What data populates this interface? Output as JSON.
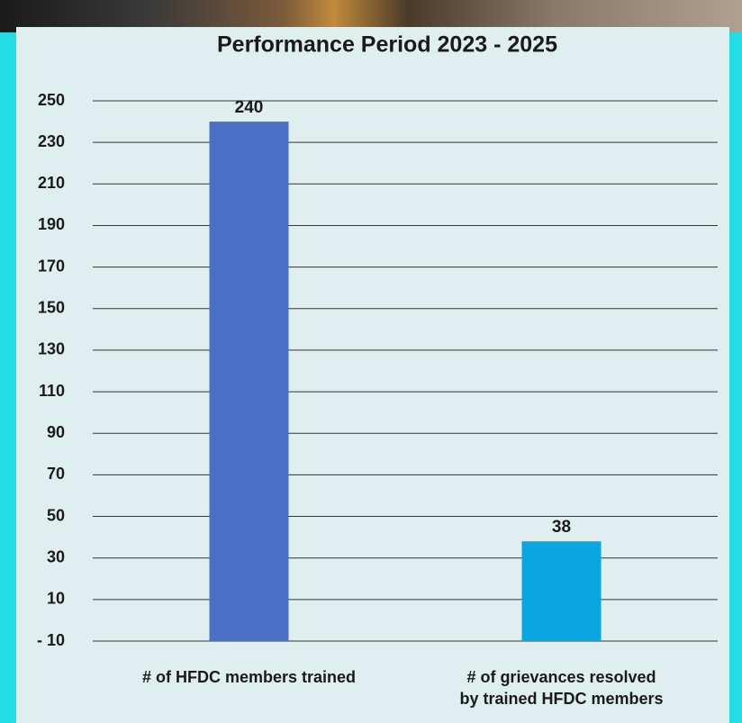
{
  "chart_data": {
    "type": "bar",
    "title": "Performance Period 2023 - 2025",
    "categories": [
      "# of HFDC members trained",
      "# of grievances resolved\nby trained HFDC members"
    ],
    "values": [
      240,
      38
    ],
    "colors": [
      "#4a70c6",
      "#0aa6e2"
    ],
    "ylim": [
      -10,
      250
    ],
    "yticks": [
      {
        "value": -10,
        "label": "- 10"
      },
      10,
      30,
      50,
      70,
      90,
      110,
      130,
      150,
      170,
      190,
      210,
      230,
      250
    ],
    "grid": true
  }
}
